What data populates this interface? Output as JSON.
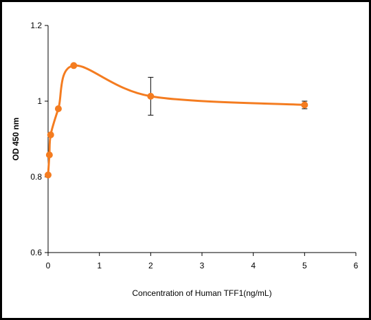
{
  "chart_data": {
    "type": "line",
    "xlabel": "Concentration of Human TFF1(ng/mL)",
    "ylabel": "OD 450 nm",
    "xlim": [
      0,
      6
    ],
    "ylim": [
      0.6,
      1.2
    ],
    "xticks": [
      0,
      1,
      2,
      3,
      4,
      5,
      6
    ],
    "yticks": [
      0.6,
      0.8,
      1.0,
      1.2
    ],
    "xtick_labels": [
      "0",
      "1",
      "2",
      "3",
      "4",
      "5",
      "6"
    ],
    "ytick_labels": [
      "0.6",
      "0.8",
      "1",
      "1.2"
    ],
    "grid": false,
    "line_style": "smooth",
    "series": [
      {
        "color": "#f47c20",
        "x": [
          0,
          0.025,
          0.05,
          0.2,
          0.5,
          2,
          5
        ],
        "y": [
          0.805,
          0.858,
          0.911,
          0.98,
          1.094,
          1.013,
          0.99
        ],
        "error": [
          0,
          0,
          0,
          0,
          0,
          0.05,
          0.01
        ]
      }
    ]
  }
}
